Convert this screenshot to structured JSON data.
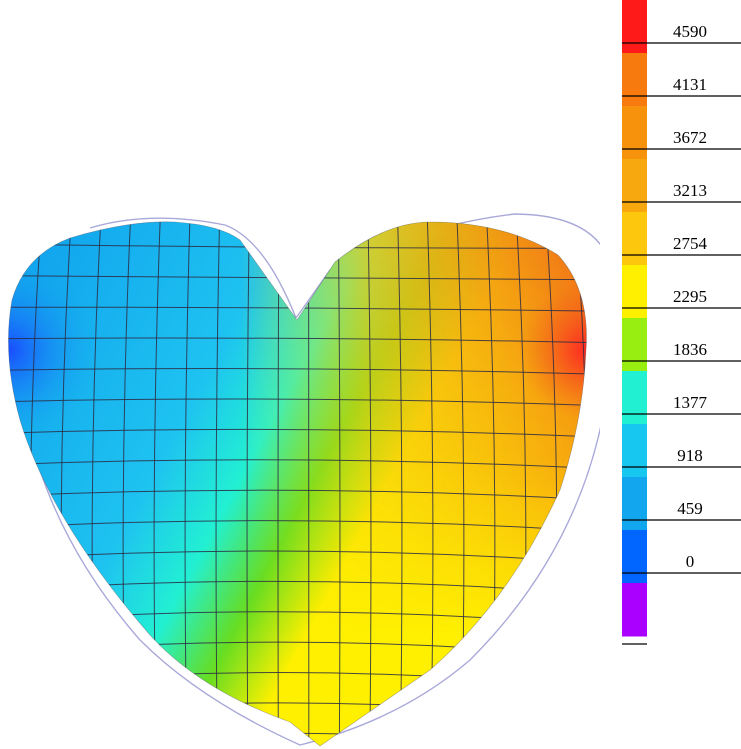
{
  "legend": {
    "labels": [
      "4590",
      "4131",
      "3672",
      "3213",
      "2754",
      "2295",
      "1836",
      "1377",
      "918",
      "459",
      "0"
    ],
    "swatch_colors": [
      "#ff1a1a",
      "#f77a0e",
      "#f7920d",
      "#f7a80e",
      "#fcc70c",
      "#fff000",
      "#99ee11",
      "#22f0d2",
      "#18c7ef",
      "#12a6ee",
      "#0066ff",
      "#aa00ff"
    ]
  },
  "field": {
    "colors": {
      "deep_blue": "#1a4cff",
      "blue": "#12a6ee",
      "light_blue": "#1ec3f0",
      "cyan": "#22f0d2",
      "green": "#66dd22",
      "yellow": "#fff000",
      "gold": "#f5c512",
      "orange": "#f29714",
      "red_orange": "#f0601a",
      "red": "#ff2424"
    },
    "mesh_color": "#2c2c44",
    "undeformed_outline_color": "#a9a9d9"
  }
}
